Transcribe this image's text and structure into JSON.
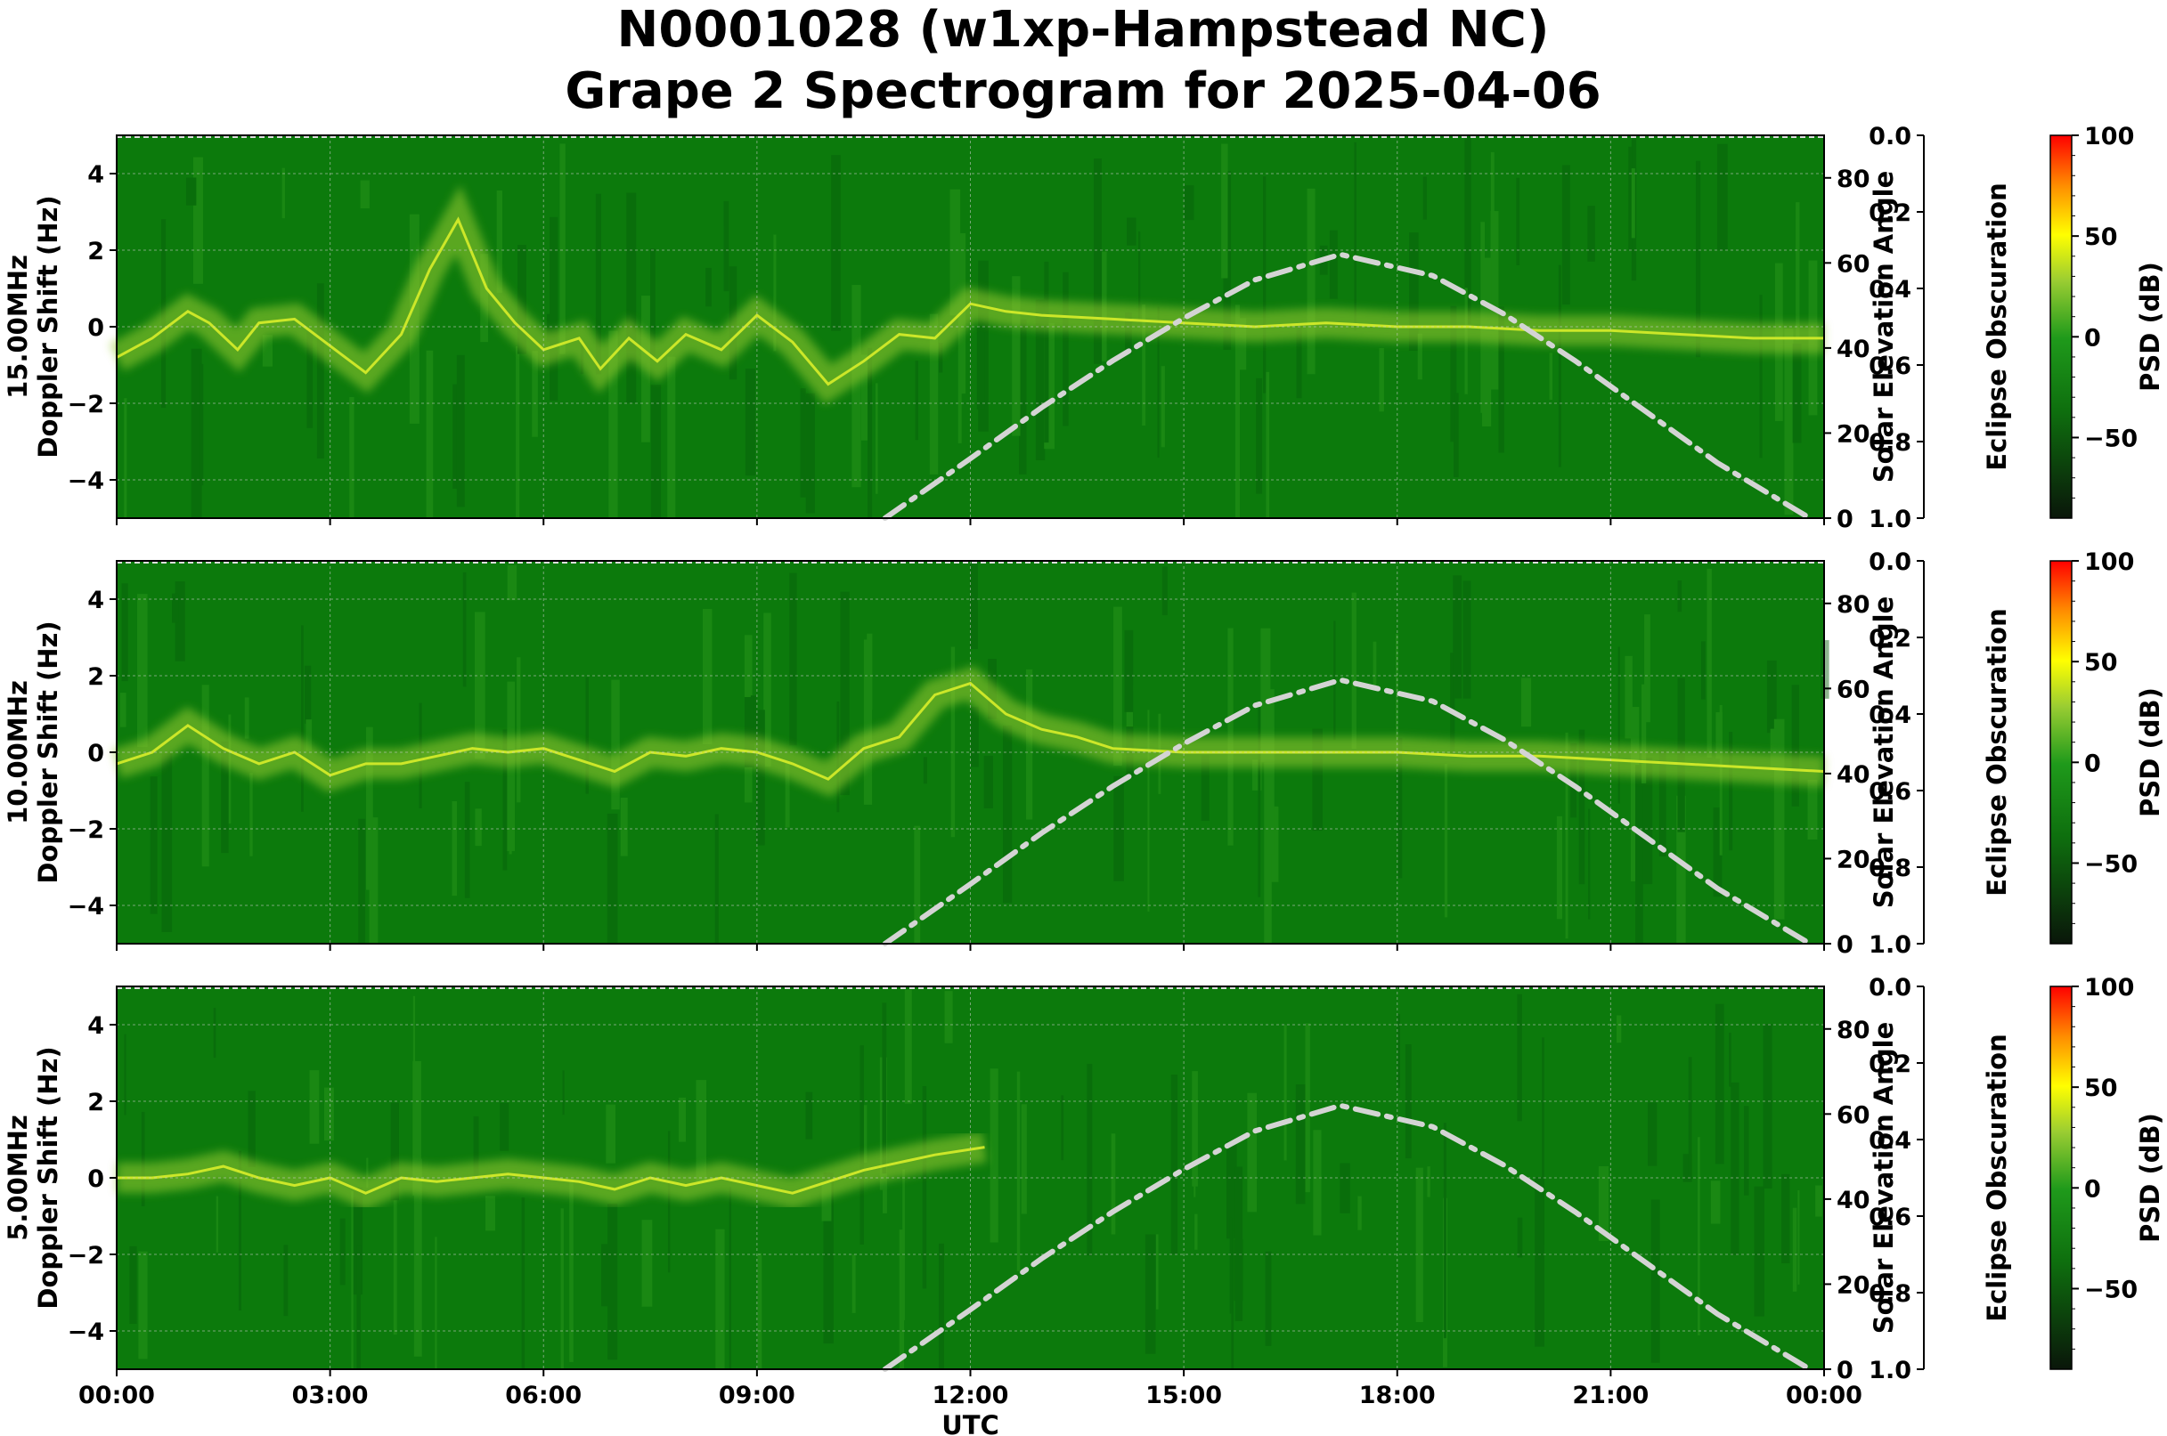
{
  "title_line1": "N0001028 (w1xp-Hampstead NC)",
  "title_line2": "Grape 2 Spectrogram for 2025-04-06",
  "colors": {
    "background_green": "#0c7a0c",
    "signal_yellow": "#d8ee2a",
    "solar_curve": "#d4d4d4",
    "colormap": [
      "#0a160a",
      "#0e6f0e",
      "#1f9a1b",
      "#9acd32",
      "#ffff00",
      "#ff8c00",
      "#ff0000"
    ]
  },
  "chart_data": [
    {
      "type": "heatmap",
      "freq_label": "15.00MHz",
      "ylabel": "Doppler Shift (Hz)",
      "ylim": [
        -5,
        5
      ],
      "yticks": [
        "4",
        "2",
        "0",
        "−2",
        "−4"
      ],
      "xlabel": "",
      "xticks": [
        "00:00",
        "03:00",
        "06:00",
        "09:00",
        "12:00",
        "15:00",
        "18:00",
        "21:00",
        "00:00"
      ],
      "solar_ylabel": "Solar Elevation Angle",
      "solar_ylim": [
        0,
        90
      ],
      "solar_yticks": [
        "0",
        "20",
        "40",
        "60",
        "80"
      ],
      "eclipse_ylabel": "Eclipse Obscuration",
      "eclipse_ylim": [
        1.0,
        0.0
      ],
      "eclipse_yticks": [
        "0.0",
        "0.2",
        "0.4",
        "0.6",
        "0.8",
        "1.0"
      ],
      "colorbar_label": "PSD (dB)",
      "colorbar_range": [
        -90,
        100
      ],
      "colorbar_ticks": [
        "100",
        "50",
        "0",
        "−50"
      ],
      "solar_elevation": {
        "x_hours": [
          10.8,
          12,
          13,
          14,
          15,
          16,
          17.2,
          18.5,
          19.5,
          20.5,
          21.5,
          22.5,
          23.8
        ],
        "deg": [
          0,
          14,
          26,
          37,
          47,
          56,
          62,
          57,
          48,
          37,
          25,
          13,
          0
        ]
      },
      "doppler_trace": {
        "x_hours": [
          0,
          0.5,
          1,
          1.3,
          1.7,
          2,
          2.5,
          3,
          3.5,
          4,
          4.4,
          4.8,
          5.2,
          5.6,
          6,
          6.5,
          6.8,
          7.2,
          7.6,
          8,
          8.5,
          9,
          9.5,
          10,
          10.5,
          11,
          11.5,
          12,
          12.5,
          13,
          14,
          15,
          16,
          17,
          18,
          19,
          20,
          21,
          22,
          23,
          24
        ],
        "hz": [
          -0.8,
          -0.3,
          0.4,
          0.1,
          -0.6,
          0.1,
          0.2,
          -0.5,
          -1.2,
          -0.2,
          1.5,
          2.8,
          1.0,
          0.1,
          -0.6,
          -0.3,
          -1.1,
          -0.3,
          -0.9,
          -0.2,
          -0.6,
          0.3,
          -0.4,
          -1.5,
          -0.9,
          -0.2,
          -0.3,
          0.6,
          0.4,
          0.3,
          0.2,
          0.1,
          0.0,
          0.1,
          0.0,
          0.0,
          -0.1,
          -0.1,
          -0.2,
          -0.3,
          -0.3
        ]
      }
    },
    {
      "type": "heatmap",
      "freq_label": "10.00MHz",
      "ylabel": "Doppler Shift (Hz)",
      "ylim": [
        -5,
        5
      ],
      "yticks": [
        "4",
        "2",
        "0",
        "−2",
        "−4"
      ],
      "xlabel": "",
      "xticks": [
        "00:00",
        "03:00",
        "06:00",
        "09:00",
        "12:00",
        "15:00",
        "18:00",
        "21:00",
        "00:00"
      ],
      "solar_ylabel": "Solar Elevation Angle",
      "solar_ylim": [
        0,
        90
      ],
      "solar_yticks": [
        "0",
        "20",
        "40",
        "60",
        "80"
      ],
      "eclipse_ylabel": "Eclipse Obscuration",
      "eclipse_ylim": [
        1.0,
        0.0
      ],
      "eclipse_yticks": [
        "0.0",
        "0.2",
        "0.4",
        "0.6",
        "0.8",
        "1.0"
      ],
      "colorbar_label": "PSD (dB)",
      "colorbar_range": [
        -90,
        100
      ],
      "colorbar_ticks": [
        "100",
        "50",
        "0",
        "−50"
      ],
      "solar_elevation": {
        "x_hours": [
          10.8,
          12,
          13,
          14,
          15,
          16,
          17.2,
          18.5,
          19.5,
          20.5,
          21.5,
          22.5,
          23.8
        ],
        "deg": [
          0,
          14,
          26,
          37,
          47,
          56,
          62,
          57,
          48,
          37,
          25,
          13,
          0
        ]
      },
      "doppler_trace": {
        "x_hours": [
          0,
          0.5,
          1,
          1.5,
          2,
          2.5,
          3,
          3.5,
          4,
          4.5,
          5,
          5.5,
          6,
          6.5,
          7,
          7.5,
          8,
          8.5,
          9,
          9.5,
          10,
          10.5,
          11,
          11.5,
          12,
          12.5,
          13,
          13.5,
          14,
          15,
          16,
          17,
          18,
          19,
          20,
          21,
          22,
          23,
          24
        ],
        "hz": [
          -0.3,
          0.0,
          0.7,
          0.1,
          -0.3,
          0.0,
          -0.6,
          -0.3,
          -0.3,
          -0.1,
          0.1,
          0.0,
          0.1,
          -0.2,
          -0.5,
          0.0,
          -0.1,
          0.1,
          0.0,
          -0.3,
          -0.7,
          0.1,
          0.4,
          1.5,
          1.8,
          1.0,
          0.6,
          0.4,
          0.1,
          0.0,
          0.0,
          0.0,
          0.0,
          -0.1,
          -0.1,
          -0.2,
          -0.3,
          -0.4,
          -0.5
        ]
      }
    },
    {
      "type": "heatmap",
      "freq_label": "5.00MHz",
      "ylabel": "Doppler Shift (Hz)",
      "ylim": [
        -5,
        5
      ],
      "yticks": [
        "4",
        "2",
        "0",
        "−2",
        "−4"
      ],
      "xlabel": "UTC",
      "xticks": [
        "00:00",
        "03:00",
        "06:00",
        "09:00",
        "12:00",
        "15:00",
        "18:00",
        "21:00",
        "00:00"
      ],
      "solar_ylabel": "Solar Elevation Angle",
      "solar_ylim": [
        0,
        90
      ],
      "solar_yticks": [
        "0",
        "20",
        "40",
        "60",
        "80"
      ],
      "eclipse_ylabel": "Eclipse Obscuration",
      "eclipse_ylim": [
        1.0,
        0.0
      ],
      "eclipse_yticks": [
        "0.0",
        "0.2",
        "0.4",
        "0.6",
        "0.8",
        "1.0"
      ],
      "colorbar_label": "PSD (dB)",
      "colorbar_range": [
        -90,
        100
      ],
      "colorbar_ticks": [
        "100",
        "50",
        "0",
        "−50"
      ],
      "solar_elevation": {
        "x_hours": [
          10.8,
          12,
          13,
          14,
          15,
          16,
          17.2,
          18.5,
          19.5,
          20.5,
          21.5,
          22.5,
          23.8
        ],
        "deg": [
          0,
          14,
          26,
          37,
          47,
          56,
          62,
          57,
          48,
          37,
          25,
          13,
          0
        ]
      },
      "doppler_trace": {
        "x_hours": [
          0,
          0.5,
          1,
          1.5,
          2,
          2.5,
          3,
          3.5,
          4,
          4.5,
          5,
          5.5,
          6,
          6.5,
          7,
          7.5,
          8,
          8.5,
          9,
          9.5,
          10,
          10.5,
          11,
          11.5,
          12.2
        ],
        "hz": [
          0.0,
          0.0,
          0.1,
          0.3,
          0.0,
          -0.2,
          0.0,
          -0.4,
          0.0,
          -0.1,
          0.0,
          0.1,
          0.0,
          -0.1,
          -0.3,
          0.0,
          -0.2,
          0.0,
          -0.2,
          -0.4,
          -0.1,
          0.2,
          0.4,
          0.6,
          0.8
        ]
      }
    }
  ]
}
